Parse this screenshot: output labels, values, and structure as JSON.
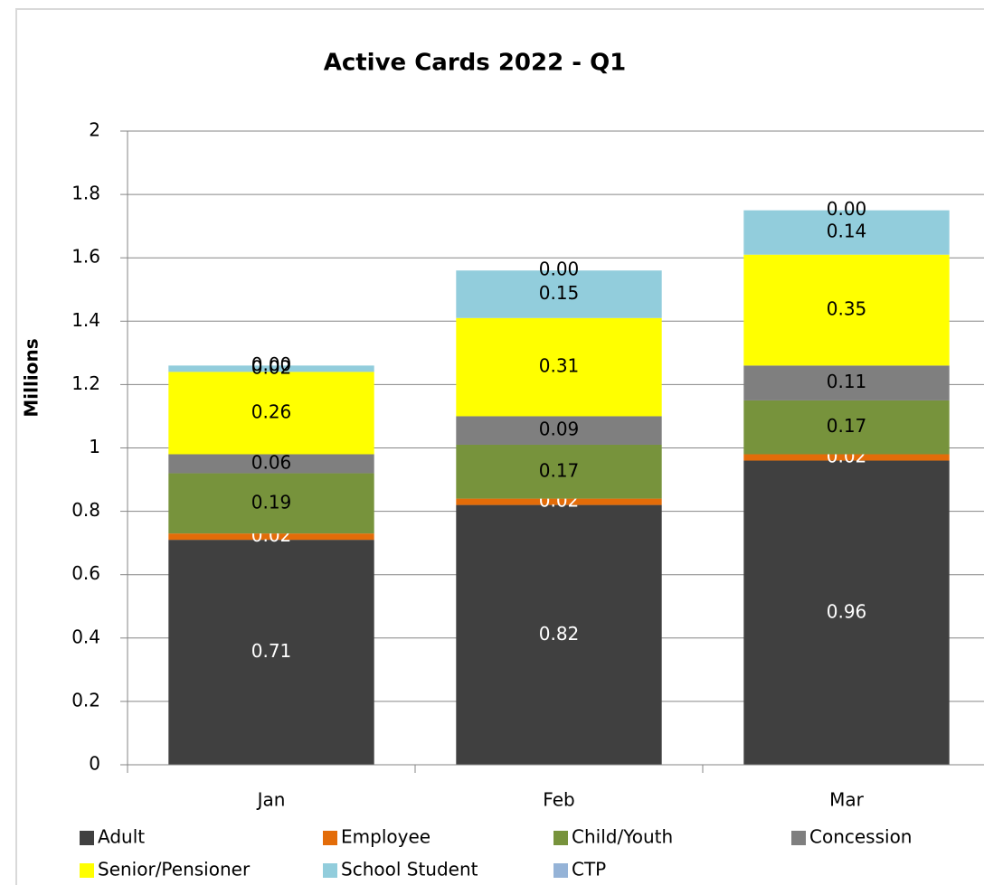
{
  "chart_data": {
    "type": "stacked_bar",
    "title": "Active Cards 2022 - Q1",
    "y_label": "Millions",
    "categories": [
      "Jan",
      "Feb",
      "Mar"
    ],
    "series": [
      {
        "name": "Adult",
        "color": "#404040",
        "label_color": "#ffffff",
        "values": [
          0.71,
          0.82,
          0.96
        ]
      },
      {
        "name": "Employee",
        "color": "#e36c09",
        "label_color": "#ffffff",
        "values": [
          0.02,
          0.02,
          0.02
        ]
      },
      {
        "name": "Child/Youth",
        "color": "#77933c",
        "label_color": "#000000",
        "values": [
          0.19,
          0.17,
          0.17
        ]
      },
      {
        "name": "Concession",
        "color": "#7f7f7f",
        "label_color": "#000000",
        "values": [
          0.06,
          0.09,
          0.11
        ]
      },
      {
        "name": "Senior/Pensioner",
        "color": "#ffff00",
        "label_color": "#000000",
        "values": [
          0.26,
          0.31,
          0.35
        ]
      },
      {
        "name": "School Student",
        "color": "#92cddc",
        "label_color": "#000000",
        "values": [
          0.02,
          0.15,
          0.14
        ]
      },
      {
        "name": "CTP",
        "color": "#95b3d7",
        "label_color": "#000000",
        "values": [
          0,
          0,
          0
        ],
        "value_labels": [
          "0.00",
          "0.00",
          "0.00"
        ]
      }
    ],
    "ylim": [
      0,
      2
    ],
    "yticks": [
      0,
      0.2,
      0.4,
      0.6,
      0.8,
      1,
      1.2,
      1.4,
      1.6,
      1.8,
      2
    ],
    "grid": true
  }
}
